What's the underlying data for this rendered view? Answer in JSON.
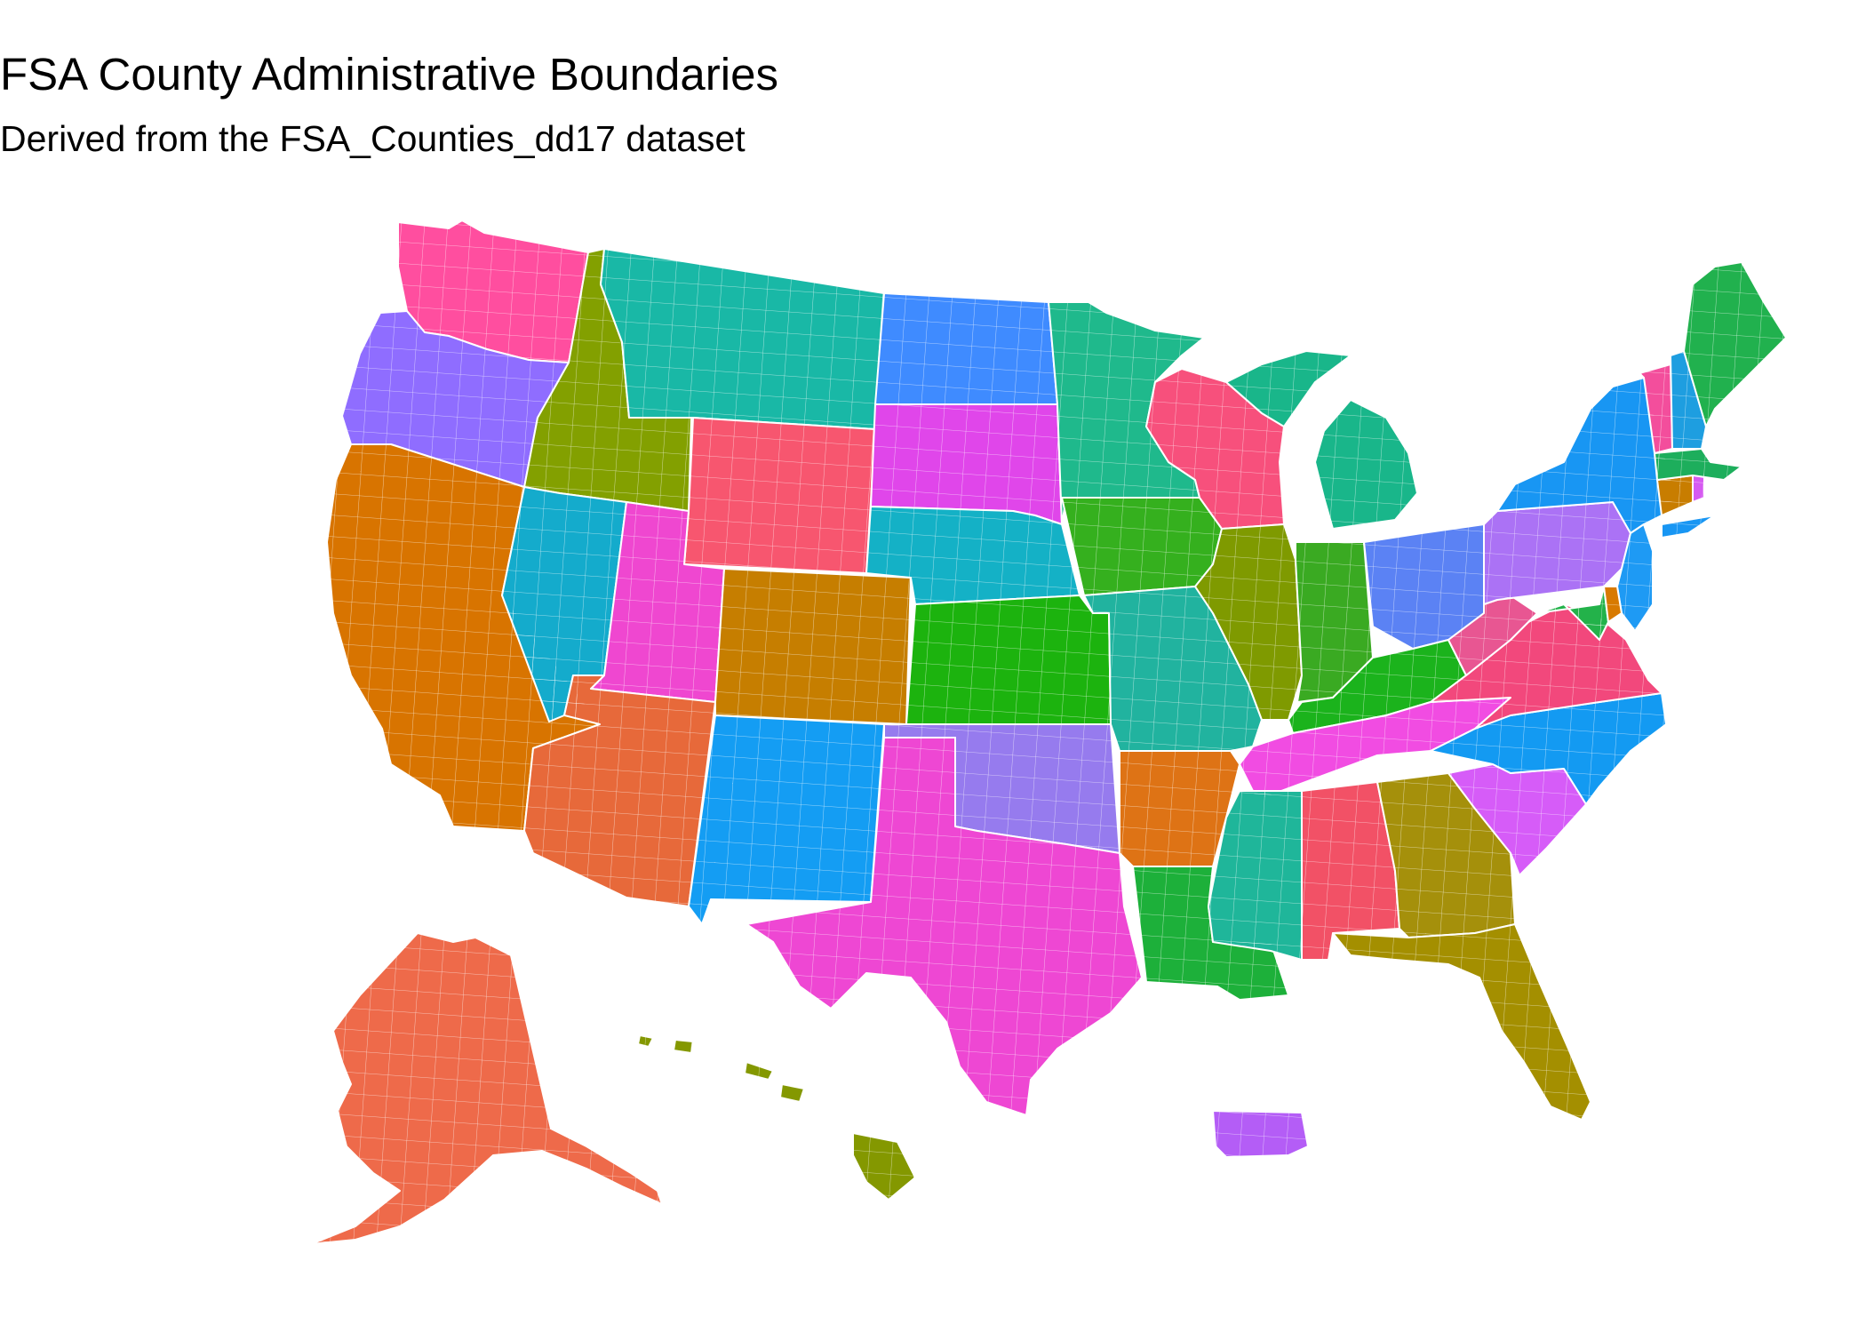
{
  "header": {
    "title": "FSA County Administrative Boundaries",
    "subtitle": "Derived from the FSA_Counties_dd17 dataset"
  },
  "map": {
    "background": "#ffffff",
    "boundary_color": "#ffffff",
    "regions": [
      {
        "id": "WA",
        "color": "#FF4E9F"
      },
      {
        "id": "OR",
        "color": "#8F6DFF"
      },
      {
        "id": "CA",
        "color": "#D87400"
      },
      {
        "id": "ID",
        "color": "#83A000"
      },
      {
        "id": "NV",
        "color": "#14ABCC"
      },
      {
        "id": "MT",
        "color": "#19B8A6"
      },
      {
        "id": "WY",
        "color": "#F7566F"
      },
      {
        "id": "UT",
        "color": "#EF47D0"
      },
      {
        "id": "AZ",
        "color": "#E7693A"
      },
      {
        "id": "CO",
        "color": "#C67E00"
      },
      {
        "id": "NM",
        "color": "#149DF3"
      },
      {
        "id": "ND",
        "color": "#3F8BFF"
      },
      {
        "id": "SD",
        "color": "#E046EA"
      },
      {
        "id": "NE",
        "color": "#14B1C6"
      },
      {
        "id": "KS",
        "color": "#1CB30E"
      },
      {
        "id": "OK",
        "color": "#967BEE"
      },
      {
        "id": "TX",
        "color": "#EE47D3"
      },
      {
        "id": "MN",
        "color": "#1FB98C"
      },
      {
        "id": "IA",
        "color": "#35B01E"
      },
      {
        "id": "MO",
        "color": "#21B39F"
      },
      {
        "id": "AR",
        "color": "#DE7315"
      },
      {
        "id": "LA",
        "color": "#1DB03A"
      },
      {
        "id": "WI",
        "color": "#F7507C"
      },
      {
        "id": "IL",
        "color": "#7F9A00"
      },
      {
        "id": "MI",
        "color": "#19B68A"
      },
      {
        "id": "IN",
        "color": "#3AAA22"
      },
      {
        "id": "OH",
        "color": "#5B82F4"
      },
      {
        "id": "KY",
        "color": "#1BB31C"
      },
      {
        "id": "TN",
        "color": "#F14CE2"
      },
      {
        "id": "MS",
        "color": "#1FB69A"
      },
      {
        "id": "AL",
        "color": "#F25166"
      },
      {
        "id": "GA",
        "color": "#A5900B"
      },
      {
        "id": "FL",
        "color": "#A48F00"
      },
      {
        "id": "SC",
        "color": "#D65CF8"
      },
      {
        "id": "NC",
        "color": "#139AF2"
      },
      {
        "id": "VA",
        "color": "#F2487C"
      },
      {
        "id": "WV",
        "color": "#E85692"
      },
      {
        "id": "PA",
        "color": "#AB72F5"
      },
      {
        "id": "NY",
        "color": "#1896F3"
      },
      {
        "id": "MD",
        "color": "#23B24A"
      },
      {
        "id": "DE",
        "color": "#D87A00"
      },
      {
        "id": "NJ",
        "color": "#1E9AF4"
      },
      {
        "id": "CT",
        "color": "#C87D00"
      },
      {
        "id": "RI",
        "color": "#D65AF1"
      },
      {
        "id": "MA",
        "color": "#1DAE5C"
      },
      {
        "id": "VT",
        "color": "#F34E9C"
      },
      {
        "id": "NH",
        "color": "#1E9EE0"
      },
      {
        "id": "ME",
        "color": "#21B14E"
      },
      {
        "id": "AK",
        "color": "#EE6A4A"
      },
      {
        "id": "HI",
        "color": "#849800"
      },
      {
        "id": "PR",
        "color": "#B45DF6"
      }
    ]
  }
}
